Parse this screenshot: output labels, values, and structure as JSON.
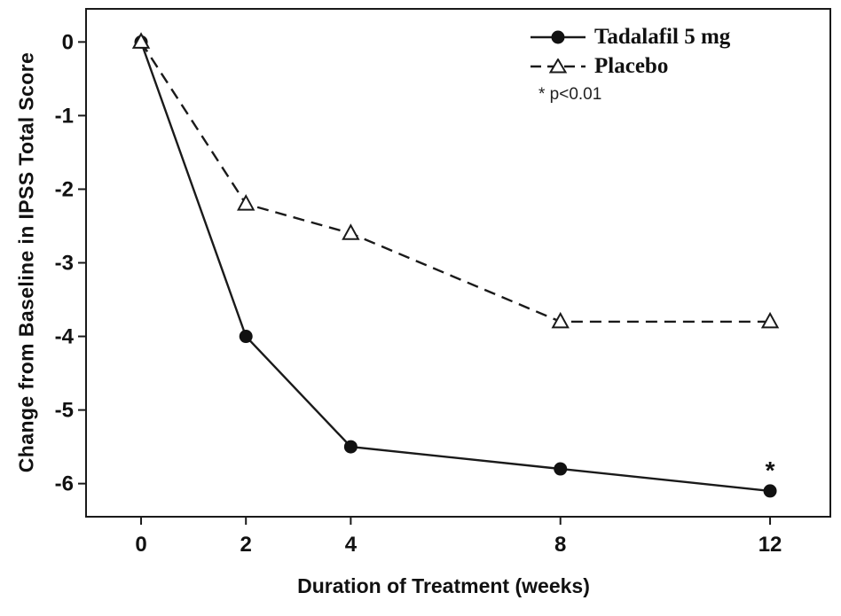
{
  "chart_data": {
    "type": "line",
    "x": [
      0,
      2,
      4,
      8,
      12
    ],
    "series": [
      {
        "name": "Tadalafil 5 mg",
        "values": [
          0,
          -4.0,
          -5.5,
          -5.8,
          -6.1
        ],
        "marker": "filled-circle",
        "line": "solid"
      },
      {
        "name": "Placebo",
        "values": [
          0,
          -2.2,
          -2.6,
          -3.8,
          -3.8
        ],
        "marker": "open-triangle",
        "line": "dashed"
      }
    ],
    "xlabel": "Duration of Treatment (weeks)",
    "ylabel": "Change from Baseline in IPSS Total Score",
    "x_ticks": [
      0,
      2,
      4,
      8,
      12
    ],
    "y_ticks": [
      0,
      -1,
      -2,
      -3,
      -4,
      -5,
      -6
    ],
    "xlim": [
      -1.05,
      13.15
    ],
    "ylim": [
      -6.45,
      0.45
    ],
    "grid": false,
    "legend_position": "top-right",
    "legend_note": "* p<0.01",
    "annotation": {
      "text": "*",
      "x": 12,
      "y": -5.93
    },
    "colors": {
      "line": "#1a1a1a",
      "marker_fill": "#111111",
      "background": "#ffffff"
    }
  }
}
